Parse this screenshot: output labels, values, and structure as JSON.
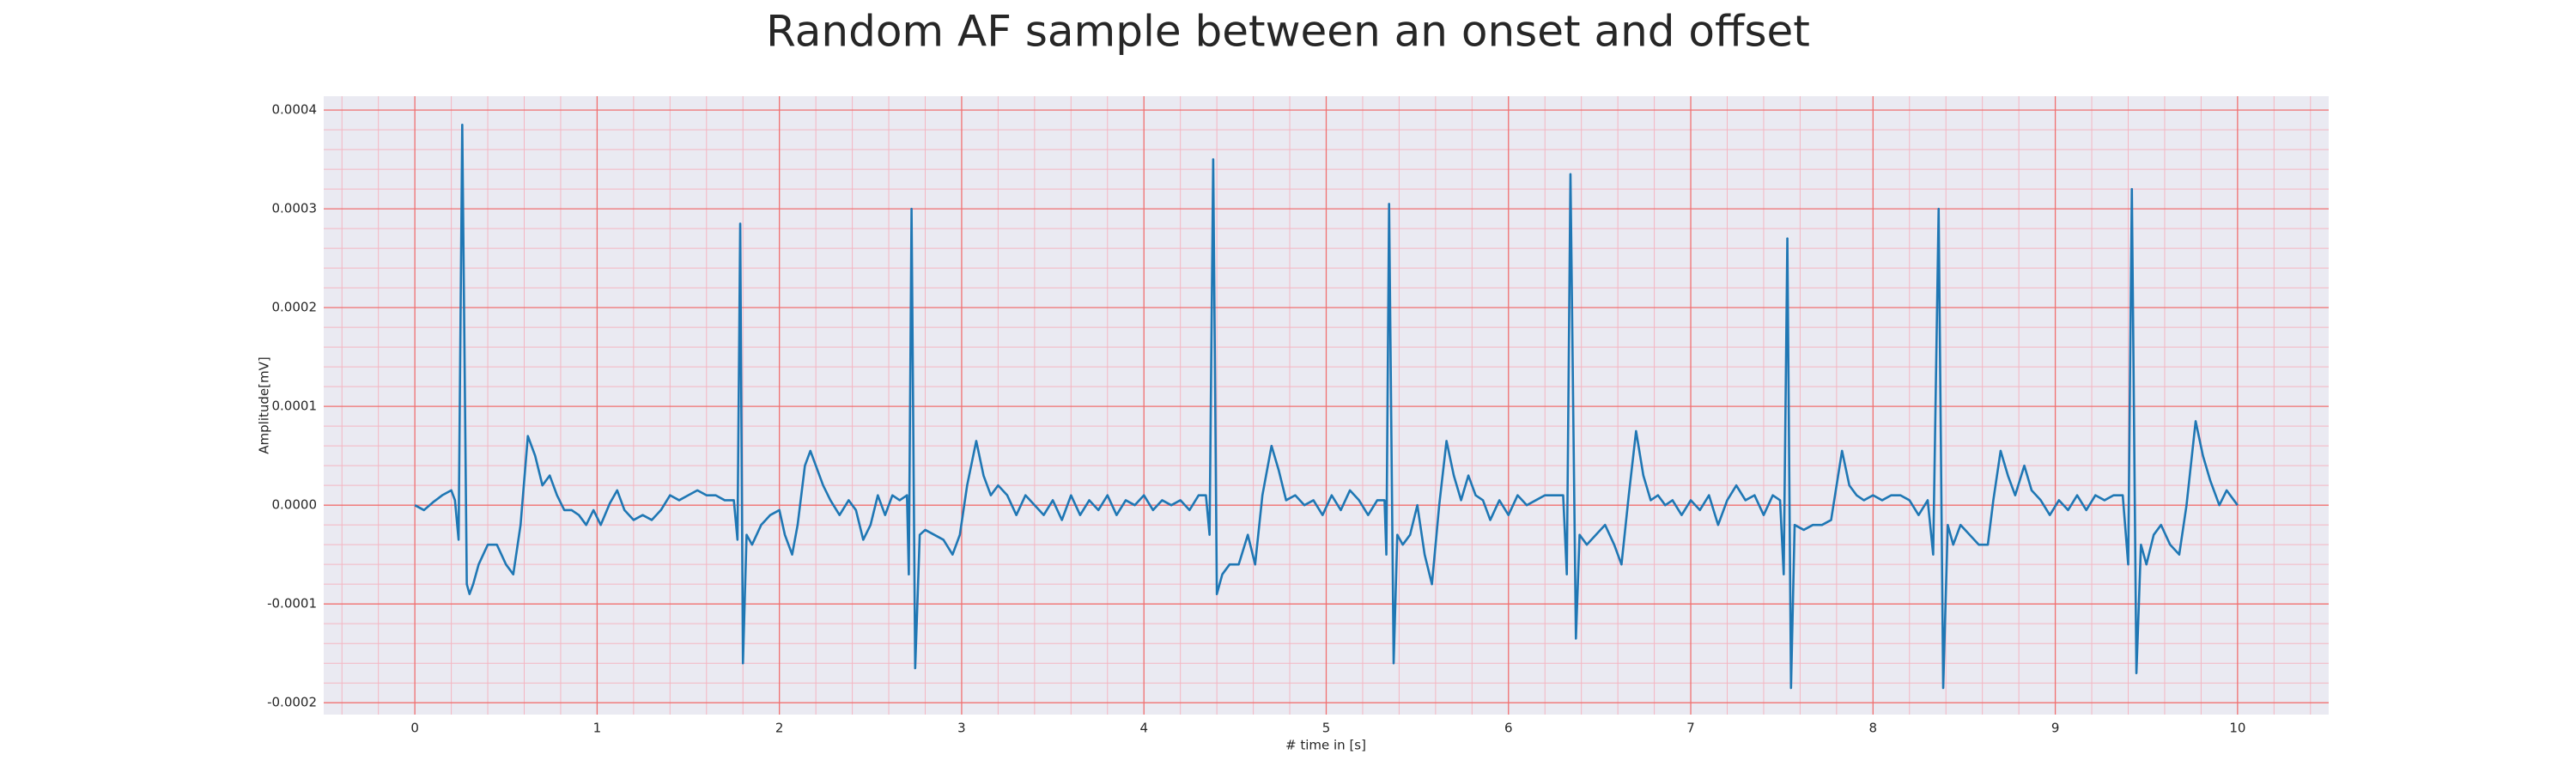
{
  "chart_data": {
    "type": "line",
    "title": "Random AF sample between an onset and offset",
    "xlabel": "# time in [s]",
    "ylabel": "Amplitude[mV]",
    "color": "#1f77b4",
    "grid": true,
    "minor_grid": true,
    "xlim": [
      -0.5,
      10.5
    ],
    "ylim": [
      -0.000212,
      0.000414
    ],
    "xticks": [
      0,
      1,
      2,
      3,
      4,
      5,
      6,
      7,
      8,
      9,
      10
    ],
    "yticks": [
      -0.0002,
      -0.0001,
      {
        "value": 0,
        "label": "0.0000"
      },
      0.0001,
      0.0002,
      0.0003,
      0.0004
    ],
    "x": [
      0,
      0.05,
      0.1,
      0.15,
      0.2,
      0.22,
      0.24,
      0.26,
      0.285,
      0.3,
      0.32,
      0.35,
      0.4,
      0.45,
      0.5,
      0.54,
      0.58,
      0.62,
      0.66,
      0.7,
      0.74,
      0.78,
      0.82,
      0.86,
      0.9,
      0.94,
      0.98,
      1.02,
      1.07,
      1.11,
      1.15,
      1.2,
      1.25,
      1.3,
      1.35,
      1.4,
      1.45,
      1.5,
      1.55,
      1.6,
      1.65,
      1.7,
      1.75,
      1.77,
      1.785,
      1.8,
      1.82,
      1.85,
      1.9,
      1.95,
      2.0,
      2.03,
      2.07,
      2.1,
      2.14,
      2.17,
      2.2,
      2.24,
      2.28,
      2.33,
      2.38,
      2.42,
      2.46,
      2.5,
      2.54,
      2.58,
      2.62,
      2.66,
      2.7,
      2.71,
      2.725,
      2.745,
      2.77,
      2.8,
      2.85,
      2.9,
      2.95,
      2.99,
      3.03,
      3.08,
      3.12,
      3.16,
      3.2,
      3.25,
      3.3,
      3.35,
      3.4,
      3.45,
      3.5,
      3.55,
      3.6,
      3.65,
      3.7,
      3.75,
      3.8,
      3.85,
      3.9,
      3.95,
      4.0,
      4.05,
      4.1,
      4.15,
      4.2,
      4.25,
      4.3,
      4.34,
      4.36,
      4.38,
      4.4,
      4.43,
      4.47,
      4.52,
      4.57,
      4.61,
      4.65,
      4.7,
      4.74,
      4.78,
      4.83,
      4.88,
      4.93,
      4.98,
      5.03,
      5.08,
      5.13,
      5.18,
      5.23,
      5.28,
      5.32,
      5.33,
      5.345,
      5.37,
      5.39,
      5.42,
      5.46,
      5.5,
      5.54,
      5.58,
      5.62,
      5.66,
      5.7,
      5.74,
      5.78,
      5.82,
      5.86,
      5.9,
      5.95,
      6.0,
      6.05,
      6.1,
      6.15,
      6.2,
      6.25,
      6.3,
      6.32,
      6.34,
      6.37,
      6.39,
      6.43,
      6.48,
      6.53,
      6.58,
      6.62,
      6.66,
      6.7,
      6.74,
      6.78,
      6.82,
      6.86,
      6.9,
      6.95,
      7.0,
      7.05,
      7.1,
      7.15,
      7.2,
      7.25,
      7.3,
      7.35,
      7.4,
      7.45,
      7.49,
      7.51,
      7.53,
      7.55,
      7.57,
      7.62,
      7.67,
      7.72,
      7.77,
      7.8,
      7.83,
      7.87,
      7.91,
      7.95,
      8.0,
      8.05,
      8.1,
      8.15,
      8.2,
      8.25,
      8.3,
      8.33,
      8.36,
      8.385,
      8.41,
      8.44,
      8.48,
      8.53,
      8.58,
      8.63,
      8.66,
      8.7,
      8.74,
      8.78,
      8.83,
      8.87,
      8.92,
      8.97,
      9.02,
      9.07,
      9.12,
      9.17,
      9.22,
      9.27,
      9.32,
      9.37,
      9.4,
      9.42,
      9.445,
      9.47,
      9.5,
      9.54,
      9.58,
      9.63,
      9.68,
      9.72,
      9.77,
      9.81,
      9.85,
      9.9,
      9.94,
      9.98,
      10.0
    ],
    "values": [
      0,
      -5e-06,
      3e-06,
      1e-05,
      1.5e-05,
      5e-06,
      -3.5e-05,
      0.000385,
      -8e-05,
      -9e-05,
      -8e-05,
      -6e-05,
      -4e-05,
      -4e-05,
      -6e-05,
      -7e-05,
      -2e-05,
      7e-05,
      5e-05,
      2e-05,
      3e-05,
      1e-05,
      -5e-06,
      -5e-06,
      -1e-05,
      -2e-05,
      -5e-06,
      -2e-05,
      2e-06,
      1.5e-05,
      -5e-06,
      -1.5e-05,
      -1e-05,
      -1.5e-05,
      -5e-06,
      1e-05,
      5e-06,
      1e-05,
      1.5e-05,
      1e-05,
      1e-05,
      5e-06,
      5e-06,
      -3.5e-05,
      0.000285,
      -0.00016,
      -3e-05,
      -4e-05,
      -2e-05,
      -1e-05,
      -5e-06,
      -3e-05,
      -5e-05,
      -2e-05,
      4e-05,
      5.5e-05,
      4e-05,
      2e-05,
      5e-06,
      -1e-05,
      5e-06,
      -5e-06,
      -3.5e-05,
      -2e-05,
      1e-05,
      -1e-05,
      1e-05,
      5e-06,
      1e-05,
      -7e-05,
      0.0003,
      -0.000165,
      -3e-05,
      -2.5e-05,
      -3e-05,
      -3.5e-05,
      -5e-05,
      -3e-05,
      2e-05,
      6.5e-05,
      3e-05,
      1e-05,
      2e-05,
      1e-05,
      -1e-05,
      1e-05,
      0,
      -1e-05,
      5e-06,
      -1.5e-05,
      1e-05,
      -1e-05,
      5e-06,
      -5e-06,
      1e-05,
      -1e-05,
      5e-06,
      0,
      1e-05,
      -5e-06,
      5e-06,
      0,
      5e-06,
      -5e-06,
      1e-05,
      1e-05,
      -3e-05,
      0.00035,
      -9e-05,
      -7e-05,
      -6e-05,
      -6e-05,
      -3e-05,
      -6e-05,
      1e-05,
      6e-05,
      3.5e-05,
      5e-06,
      1e-05,
      0,
      5e-06,
      -1e-05,
      1e-05,
      -5e-06,
      1.5e-05,
      5e-06,
      -1e-05,
      5e-06,
      5e-06,
      -5e-05,
      0.000305,
      -0.00016,
      -3e-05,
      -4e-05,
      -3e-05,
      0,
      -5e-05,
      -8e-05,
      0,
      6.5e-05,
      3e-05,
      5e-06,
      3e-05,
      1e-05,
      5e-06,
      -1.5e-05,
      5e-06,
      -1e-05,
      1e-05,
      0,
      5e-06,
      1e-05,
      1e-05,
      1e-05,
      -7e-05,
      0.000335,
      -0.000135,
      -3e-05,
      -4e-05,
      -3e-05,
      -2e-05,
      -4e-05,
      -6e-05,
      1e-05,
      7.5e-05,
      3e-05,
      5e-06,
      1e-05,
      0,
      5e-06,
      -1e-05,
      5e-06,
      -5e-06,
      1e-05,
      -2e-05,
      5e-06,
      2e-05,
      5e-06,
      1e-05,
      -1e-05,
      1e-05,
      5e-06,
      -7e-05,
      0.00027,
      -0.000185,
      -2e-05,
      -2.5e-05,
      -2e-05,
      -2e-05,
      -1.5e-05,
      2e-05,
      5.5e-05,
      2e-05,
      1e-05,
      5e-06,
      1e-05,
      5e-06,
      1e-05,
      1e-05,
      5e-06,
      -1e-05,
      5e-06,
      -5e-05,
      0.0003,
      -0.000185,
      -2e-05,
      -4e-05,
      -2e-05,
      -3e-05,
      -4e-05,
      -4e-05,
      5e-06,
      5.5e-05,
      3e-05,
      1e-05,
      4e-05,
      1.5e-05,
      5e-06,
      -1e-05,
      5e-06,
      -5e-06,
      1e-05,
      -5e-06,
      1e-05,
      5e-06,
      1e-05,
      1e-05,
      -6e-05,
      0.00032,
      -0.00017,
      -4e-05,
      -6e-05,
      -3e-05,
      -2e-05,
      -4e-05,
      -5e-05,
      0,
      8.5e-05,
      5e-05,
      2.5e-05,
      0,
      1.5e-05,
      5e-06,
      0
    ]
  }
}
